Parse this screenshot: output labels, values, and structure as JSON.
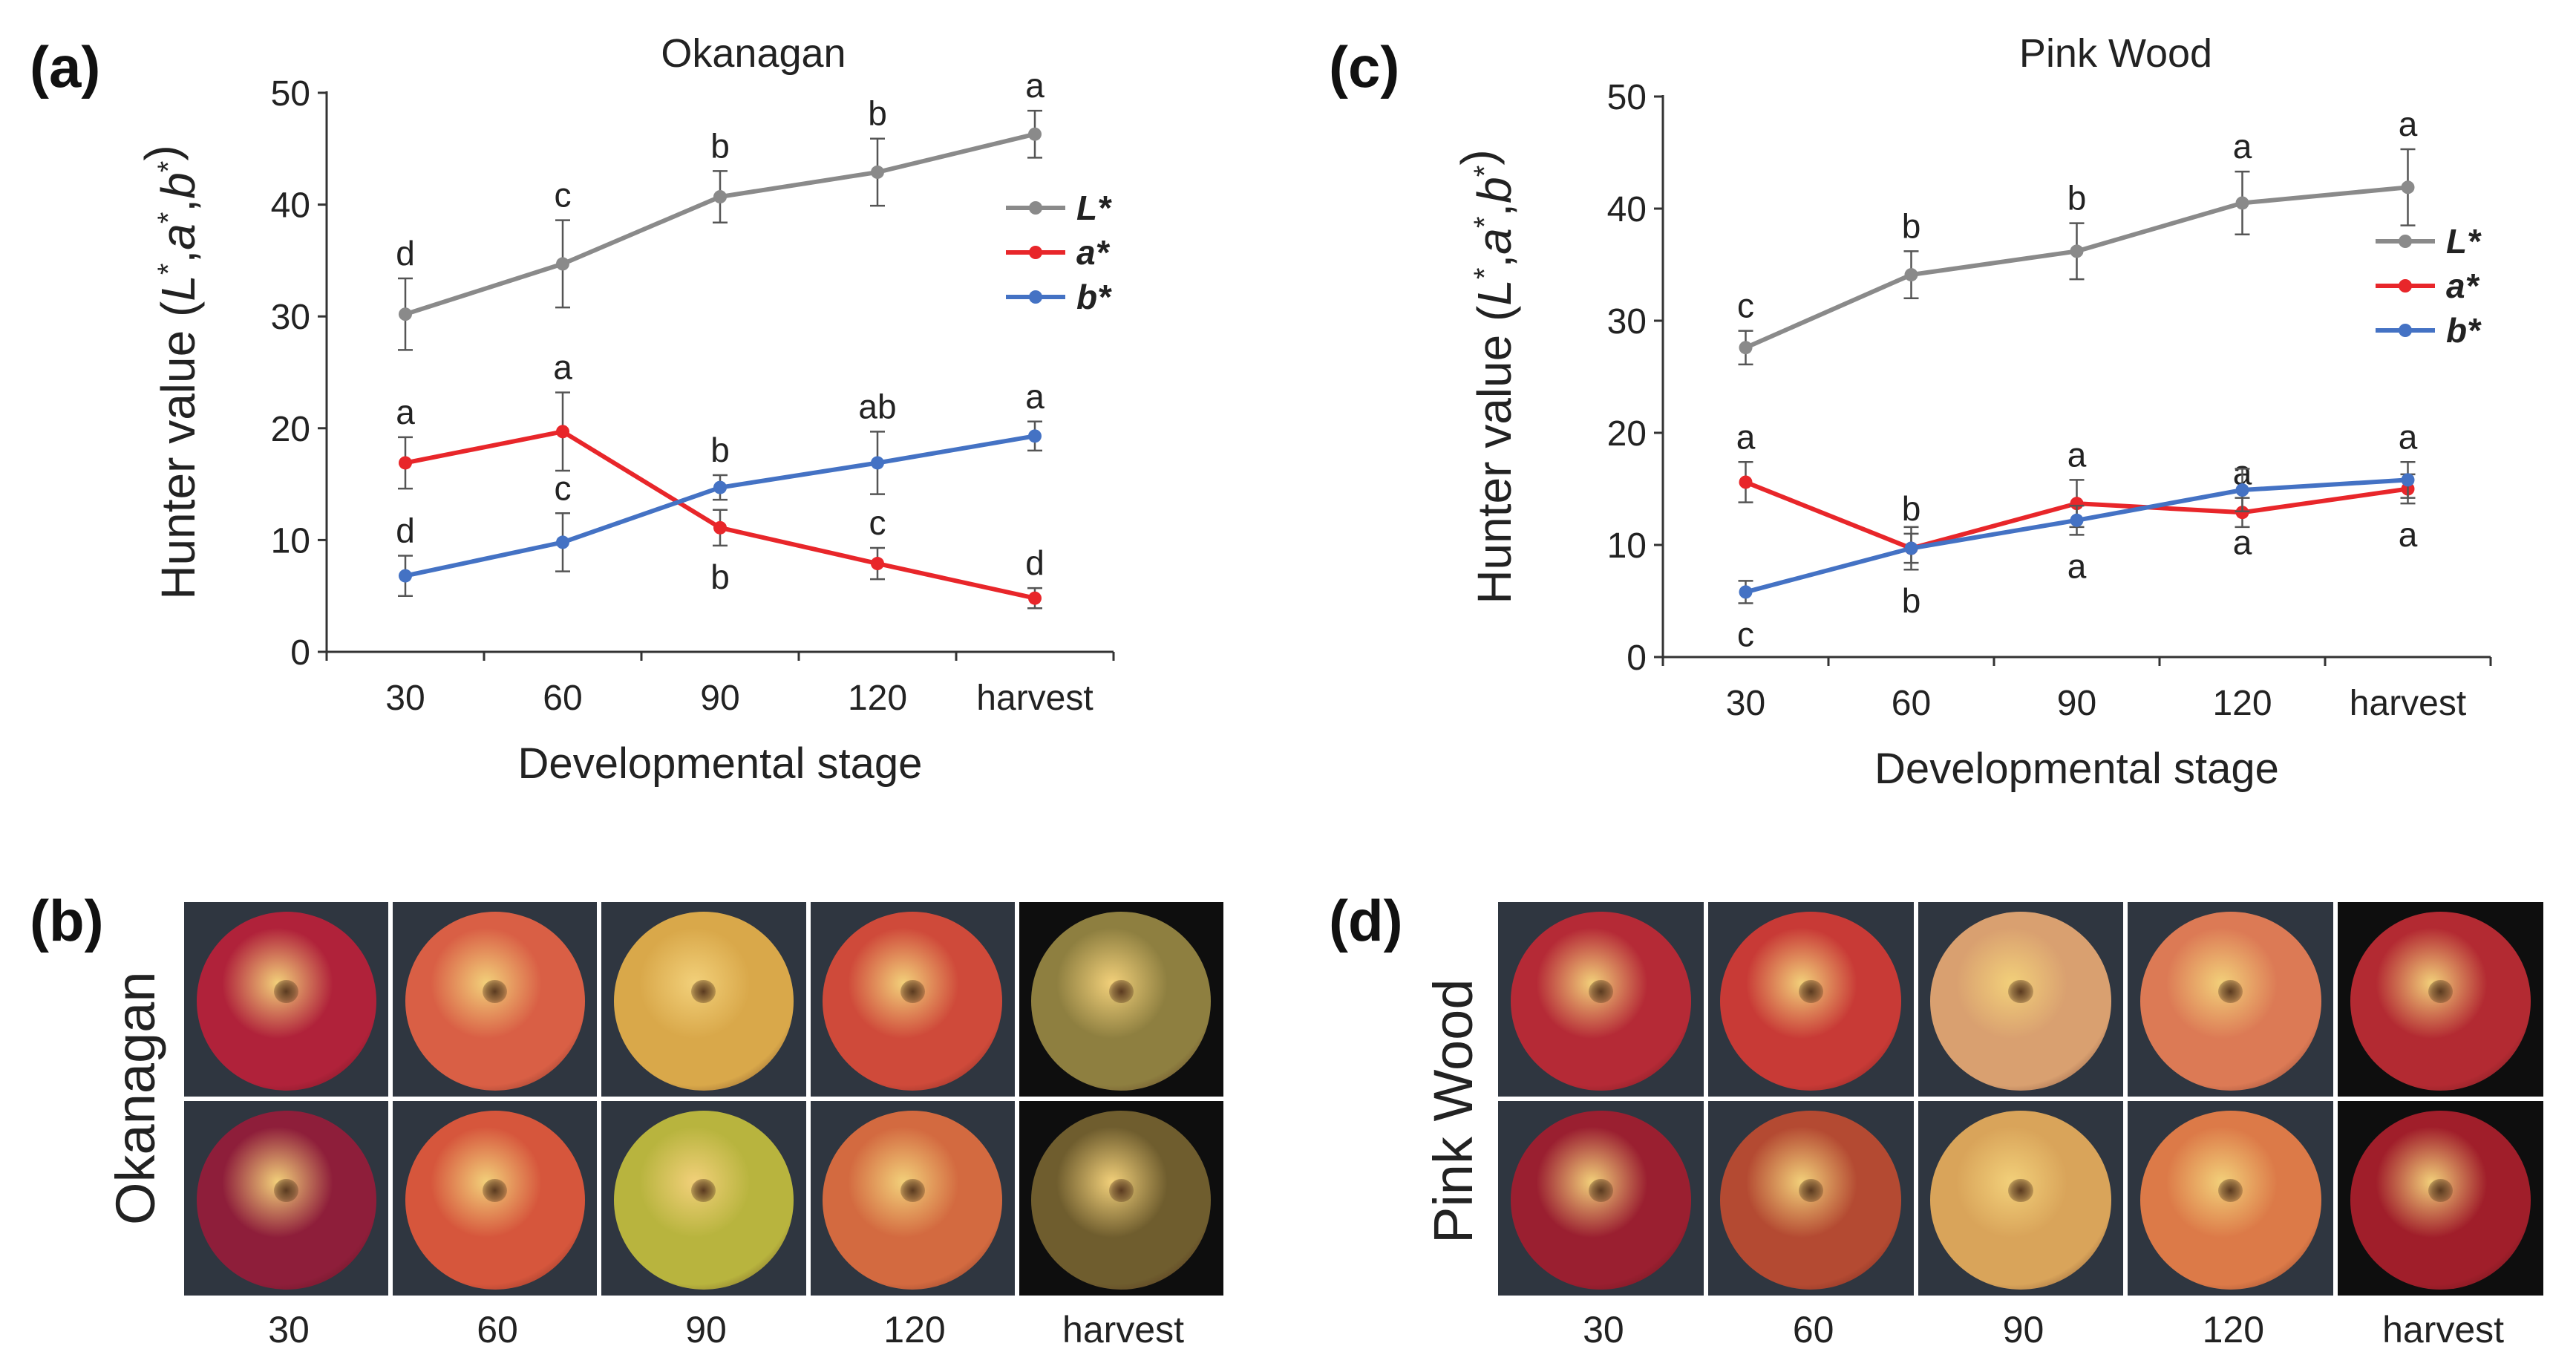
{
  "panels": {
    "a": "(a)",
    "b": "(b)",
    "c": "(c)",
    "d": "(d)"
  },
  "colors": {
    "L": "#8a8a8a",
    "a": "#e8262a",
    "b": "#4472c4"
  },
  "chart_data": [
    {
      "type": "line",
      "title": "Okanagan",
      "xlabel": "Developmental stage",
      "ylabel_prefix": "Hunter value (",
      "ylabel_vars": [
        "L",
        "a",
        "b"
      ],
      "ylabel_suffix": ")",
      "categories": [
        "30",
        "60",
        "90",
        "120",
        "harvest"
      ],
      "ylim": [
        0,
        50
      ],
      "yticks": [
        0,
        10,
        20,
        30,
        40,
        50
      ],
      "legend_position": "right",
      "series": [
        {
          "name": "L*",
          "color_key": "L",
          "values": [
            30.2,
            34.7,
            40.7,
            42.9,
            46.3
          ],
          "err": [
            3.2,
            3.9,
            2.3,
            3.0,
            2.1
          ],
          "letters": [
            "d",
            "c",
            "b",
            "b",
            "a"
          ],
          "letter_pos": [
            "above",
            "above",
            "above",
            "above",
            "above"
          ]
        },
        {
          "name": "a*",
          "color_key": "a",
          "values": [
            16.9,
            19.7,
            11.1,
            7.9,
            4.8
          ],
          "err": [
            2.3,
            3.5,
            1.6,
            1.4,
            0.9
          ],
          "letters": [
            "a",
            "a",
            "b",
            "c",
            "d"
          ],
          "letter_pos": [
            "above",
            "above",
            "below",
            "above",
            "above"
          ]
        },
        {
          "name": "b*",
          "color_key": "b",
          "values": [
            6.8,
            9.8,
            14.7,
            16.9,
            19.3
          ],
          "err": [
            1.8,
            2.6,
            1.1,
            2.8,
            1.3
          ],
          "letters": [
            "d",
            "c",
            "b",
            "ab",
            "a"
          ],
          "letter_pos": [
            "above",
            "above",
            "above",
            "above",
            "above"
          ]
        }
      ]
    },
    {
      "type": "line",
      "title": "Pink Wood",
      "xlabel": "Developmental stage",
      "ylabel_prefix": "Hunter value (",
      "ylabel_vars": [
        "L",
        "a",
        "b"
      ],
      "ylabel_suffix": ")",
      "categories": [
        "30",
        "60",
        "90",
        "120",
        "harvest"
      ],
      "ylim": [
        0,
        50
      ],
      "yticks": [
        0,
        10,
        20,
        30,
        40,
        50
      ],
      "legend_position": "right",
      "series": [
        {
          "name": "L*",
          "color_key": "L",
          "values": [
            27.6,
            34.1,
            36.2,
            40.5,
            41.9
          ],
          "err": [
            1.5,
            2.1,
            2.5,
            2.8,
            3.4
          ],
          "letters": [
            "c",
            "b",
            "b",
            "a",
            "a"
          ],
          "letter_pos": [
            "above",
            "above",
            "above",
            "above",
            "above"
          ]
        },
        {
          "name": "a*",
          "color_key": "a",
          "values": [
            15.6,
            9.7,
            13.7,
            12.9,
            15.0
          ],
          "err": [
            1.8,
            1.3,
            2.1,
            1.3,
            1.3
          ],
          "letters": [
            "a",
            "b",
            "a",
            "a",
            "a"
          ],
          "letter_pos": [
            "above",
            "above",
            "above",
            "above",
            "below"
          ]
        },
        {
          "name": "b*",
          "color_key": "b",
          "values": [
            5.8,
            9.7,
            12.2,
            14.9,
            15.8
          ],
          "err": [
            1.0,
            1.9,
            1.3,
            1.9,
            1.6
          ],
          "letters": [
            "c",
            "b",
            "a",
            "a",
            "a"
          ],
          "letter_pos": [
            "below",
            "below",
            "below",
            "below",
            "above"
          ]
        }
      ]
    }
  ],
  "photos": {
    "left": {
      "cultivar_label": "Okanagan",
      "stages": [
        "30",
        "60",
        "90",
        "120",
        "harvest"
      ],
      "fruit_colors": [
        [
          "#b0223a",
          "#d95f45",
          "#d9a84a",
          "#cf4a3a",
          "#8e7f40"
        ],
        [
          "#8e1e3a",
          "#d6563c",
          "#b8b43e",
          "#d36a40",
          "#6f5d2e"
        ]
      ],
      "background_colors": [
        "#2f3640",
        "#2f3640",
        "#2f3640",
        "#2f3640",
        "#0e0e0e"
      ]
    },
    "right": {
      "cultivar_label": "Pink Wood",
      "stages": [
        "30",
        "60",
        "90",
        "120",
        "harvest"
      ],
      "fruit_colors": [
        [
          "#b52a36",
          "#c83a36",
          "#d9a070",
          "#dc7a55",
          "#b32a32"
        ],
        [
          "#9a1f30",
          "#b44a32",
          "#d9a45a",
          "#dc7a48",
          "#a01e2a"
        ]
      ],
      "background_colors": [
        "#2f3640",
        "#2f3640",
        "#2f3640",
        "#2f3640",
        "#0e0e0e"
      ]
    }
  }
}
